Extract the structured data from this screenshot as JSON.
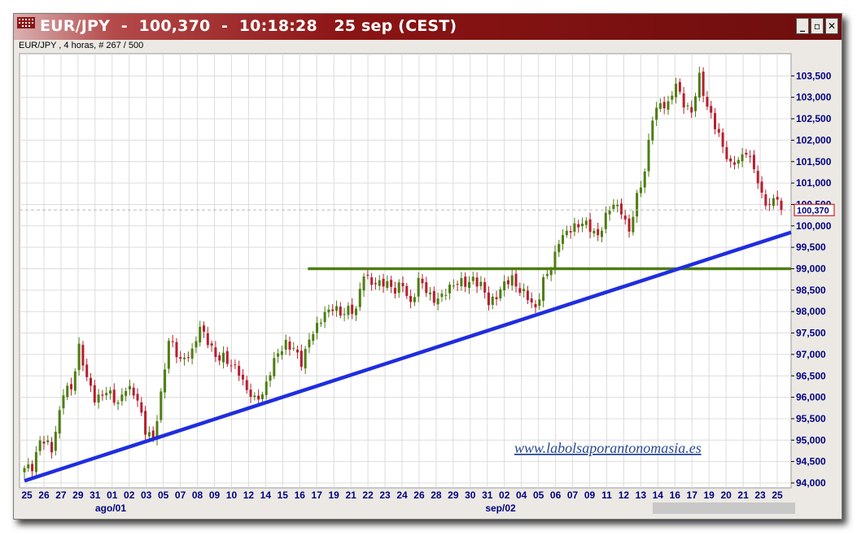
{
  "window": {
    "title": "EUR/JPY  -  100,370  -  10:18:28   25 sep (CEST)",
    "subtitle": "EUR/JPY , 4 horas, # 267 / 500",
    "minimize_label": "_",
    "restore_label": "▫",
    "close_label": "✕"
  },
  "chart_data": {
    "type": "candlestick",
    "instrument": "EUR/JPY",
    "timeframe": "4 horas",
    "last_price": 100.37,
    "last_price_label": "100,370",
    "ylim": [
      94.0,
      103.85
    ],
    "y_ticks": [
      {
        "value": 94.0,
        "label": "94,000"
      },
      {
        "value": 94.5,
        "label": "94,500"
      },
      {
        "value": 95.0,
        "label": "95,000"
      },
      {
        "value": 95.5,
        "label": "95,500"
      },
      {
        "value": 96.0,
        "label": "96,000"
      },
      {
        "value": 96.5,
        "label": "96,500"
      },
      {
        "value": 97.0,
        "label": "97,000"
      },
      {
        "value": 97.5,
        "label": "97,500"
      },
      {
        "value": 98.0,
        "label": "98,000"
      },
      {
        "value": 98.5,
        "label": "98,500"
      },
      {
        "value": 99.0,
        "label": "99,000"
      },
      {
        "value": 99.5,
        "label": "99,500"
      },
      {
        "value": 100.0,
        "label": "100,000"
      },
      {
        "value": 100.5,
        "label": "100,500"
      },
      {
        "value": 101.0,
        "label": "101,000"
      },
      {
        "value": 101.5,
        "label": "101,500"
      },
      {
        "value": 102.0,
        "label": "102,000"
      },
      {
        "value": 102.5,
        "label": "102,500"
      },
      {
        "value": 103.0,
        "label": "103,000"
      },
      {
        "value": 103.5,
        "label": "103,500"
      }
    ],
    "x_ticks": [
      "25",
      "26",
      "27",
      "29",
      "31",
      "01",
      "02",
      "03",
      "05",
      "07",
      "08",
      "09",
      "10",
      "12",
      "14",
      "15",
      "16",
      "17",
      "19",
      "21",
      "22",
      "23",
      "24",
      "26",
      "28",
      "29",
      "30",
      "31",
      "02",
      "04",
      "05",
      "06",
      "07",
      "09",
      "11",
      "12",
      "13",
      "14",
      "16",
      "17",
      "19",
      "20",
      "21",
      "23",
      "25"
    ],
    "month_labels": [
      "ago/01",
      "sep/02"
    ],
    "waypoints": [
      [
        0,
        94.3
      ],
      [
        2,
        94.4
      ],
      [
        4,
        95.0
      ],
      [
        7,
        94.8
      ],
      [
        10,
        96.1
      ],
      [
        12,
        96.2
      ],
      [
        14,
        97.2
      ],
      [
        16,
        96.4
      ],
      [
        18,
        96.0
      ],
      [
        21,
        96.1
      ],
      [
        24,
        95.9
      ],
      [
        26,
        96.2
      ],
      [
        29,
        96.0
      ],
      [
        31,
        95.2
      ],
      [
        33,
        95.0
      ],
      [
        35,
        96.1
      ],
      [
        37,
        97.3
      ],
      [
        40,
        96.9
      ],
      [
        43,
        97.0
      ],
      [
        45,
        97.7
      ],
      [
        47,
        97.3
      ],
      [
        49,
        96.9
      ],
      [
        51,
        97.0
      ],
      [
        53,
        96.7
      ],
      [
        55,
        96.6
      ],
      [
        57,
        96.2
      ],
      [
        59,
        95.9
      ],
      [
        61,
        96.1
      ],
      [
        63,
        96.6
      ],
      [
        65,
        97.0
      ],
      [
        67,
        97.3
      ],
      [
        69,
        97.1
      ],
      [
        71,
        96.8
      ],
      [
        73,
        97.4
      ],
      [
        75,
        97.6
      ],
      [
        77,
        98.0
      ],
      [
        79,
        98.1
      ],
      [
        81,
        97.9
      ],
      [
        83,
        98.1
      ],
      [
        85,
        98.0
      ],
      [
        87,
        98.9
      ],
      [
        89,
        98.7
      ],
      [
        91,
        98.6
      ],
      [
        93,
        98.7
      ],
      [
        95,
        98.5
      ],
      [
        97,
        98.6
      ],
      [
        99,
        98.2
      ],
      [
        101,
        98.7
      ],
      [
        103,
        98.5
      ],
      [
        105,
        98.3
      ],
      [
        107,
        98.3
      ],
      [
        109,
        98.6
      ],
      [
        111,
        98.7
      ],
      [
        113,
        98.6
      ],
      [
        115,
        98.8
      ],
      [
        117,
        98.6
      ],
      [
        119,
        98.2
      ],
      [
        121,
        98.4
      ],
      [
        123,
        98.6
      ],
      [
        125,
        98.8
      ],
      [
        127,
        98.5
      ],
      [
        129,
        98.3
      ],
      [
        131,
        98.1
      ],
      [
        133,
        98.7
      ],
      [
        135,
        99.0
      ],
      [
        137,
        99.7
      ],
      [
        139,
        99.8
      ],
      [
        141,
        100.0
      ],
      [
        143,
        100.1
      ],
      [
        145,
        99.9
      ],
      [
        147,
        99.8
      ],
      [
        149,
        100.2
      ],
      [
        151,
        100.5
      ],
      [
        153,
        100.4
      ],
      [
        155,
        99.8
      ],
      [
        157,
        100.7
      ],
      [
        159,
        101.3
      ],
      [
        161,
        102.5
      ],
      [
        163,
        102.9
      ],
      [
        165,
        102.8
      ],
      [
        167,
        103.3
      ],
      [
        169,
        102.9
      ],
      [
        171,
        102.6
      ],
      [
        173,
        103.5
      ],
      [
        175,
        102.8
      ],
      [
        177,
        102.3
      ],
      [
        179,
        101.9
      ],
      [
        181,
        101.4
      ],
      [
        183,
        101.5
      ],
      [
        185,
        101.8
      ],
      [
        187,
        101.3
      ],
      [
        189,
        100.7
      ],
      [
        191,
        100.5
      ],
      [
        193,
        100.65
      ],
      [
        194,
        100.37
      ]
    ],
    "num_candles": 195,
    "horizontal_line": {
      "value": 99.0,
      "from_index": 81,
      "color": "#4e7d12"
    },
    "trendline": {
      "start": [
        0,
        94.05
      ],
      "end_value_at_right_edge": 99.85,
      "color": "#1f2de0"
    },
    "colors": {
      "up": "#4e7d12",
      "down": "#b81e2e",
      "grid": "#dcdcdc",
      "axis_text": "#000080"
    },
    "watermark": "www.labolsaporantonomasia.es"
  }
}
